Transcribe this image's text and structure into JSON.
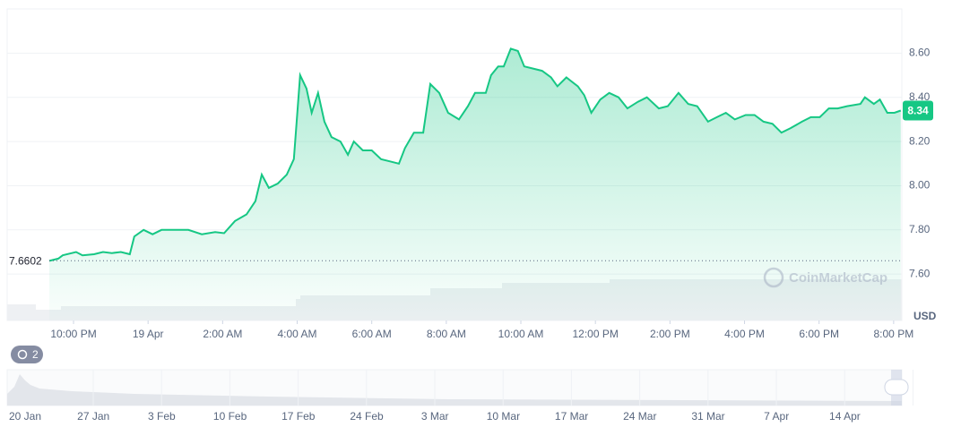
{
  "chart_data": {
    "type": "line",
    "x": [
      21.35,
      21.59,
      21.71,
      22.07,
      22.24,
      22.55,
      22.79,
      23.03,
      23.27,
      23.51,
      23.63,
      23.88,
      24.12,
      24.36,
      24.72,
      25.08,
      25.44,
      25.8,
      26.04,
      26.33,
      26.64,
      26.88,
      27.05,
      27.24,
      27.48,
      27.72,
      27.91,
      28.08,
      28.25,
      28.39,
      28.56,
      28.73,
      28.92,
      29.16,
      29.36,
      29.52,
      29.76,
      30.0,
      30.25,
      30.49,
      30.73,
      30.89,
      31.13,
      31.38,
      31.57,
      31.81,
      32.05,
      32.34,
      32.58,
      32.77,
      33.06,
      33.2,
      33.39,
      33.54,
      33.73,
      33.92,
      34.09,
      34.33,
      34.57,
      34.81,
      34.98,
      35.22,
      35.53,
      35.7,
      35.89,
      36.13,
      36.37,
      36.62,
      36.86,
      37.14,
      37.38,
      37.7,
      37.94,
      38.23,
      38.49,
      38.73,
      39.02,
      39.26,
      39.5,
      39.74,
      40.03,
      40.27,
      40.51,
      40.75,
      40.99,
      41.23,
      41.54,
      41.78,
      42.02,
      42.26,
      42.5,
      42.75,
      43.11,
      43.23,
      43.47,
      43.63,
      43.83,
      44.02,
      44.19
    ],
    "series": [
      {
        "color": "#16c784",
        "values": [
          7.66,
          7.67,
          7.685,
          7.7,
          7.685,
          7.69,
          7.7,
          7.695,
          7.7,
          7.69,
          7.77,
          7.8,
          7.78,
          7.8,
          7.8,
          7.8,
          7.78,
          7.79,
          7.785,
          7.84,
          7.87,
          7.93,
          8.05,
          7.99,
          8.01,
          8.05,
          8.12,
          8.5,
          8.44,
          8.33,
          8.42,
          8.29,
          8.22,
          8.2,
          8.14,
          8.2,
          8.16,
          8.16,
          8.12,
          8.11,
          8.1,
          8.17,
          8.24,
          8.24,
          8.46,
          8.42,
          8.33,
          8.3,
          8.36,
          8.42,
          8.42,
          8.5,
          8.54,
          8.54,
          8.62,
          8.61,
          8.54,
          8.53,
          8.52,
          8.49,
          8.45,
          8.49,
          8.45,
          8.41,
          8.33,
          8.39,
          8.42,
          8.4,
          8.35,
          8.38,
          8.4,
          8.35,
          8.36,
          8.42,
          8.37,
          8.36,
          8.29,
          8.31,
          8.33,
          8.3,
          8.32,
          8.32,
          8.29,
          8.28,
          8.24,
          8.26,
          8.29,
          8.31,
          8.31,
          8.35,
          8.35,
          8.36,
          8.37,
          8.4,
          8.37,
          8.39,
          8.33,
          8.33,
          8.34
        ]
      }
    ],
    "reference": 7.6602,
    "y_label": "USD",
    "watermark": "CoinMarketCap",
    "xlim": [
      20.22,
      44.22
    ],
    "xticks": [
      {
        "value": 22,
        "label": "10:00 PM"
      },
      {
        "value": 24,
        "label": "19 Apr"
      },
      {
        "value": 26,
        "label": "2:00 AM"
      },
      {
        "value": 28,
        "label": "4:00 AM"
      },
      {
        "value": 30,
        "label": "6:00 AM"
      },
      {
        "value": 32,
        "label": "8:00 AM"
      },
      {
        "value": 34,
        "label": "10:00 AM"
      },
      {
        "value": 36,
        "label": "12:00 PM"
      },
      {
        "value": 38,
        "label": "2:00 PM"
      },
      {
        "value": 40,
        "label": "4:00 PM"
      },
      {
        "value": 42,
        "label": "6:00 PM"
      },
      {
        "value": 44,
        "label": "8:00 PM"
      }
    ],
    "ylim": [
      7.39,
      8.8
    ],
    "yticks": [
      {
        "value": 7.6,
        "label": "7.60"
      },
      {
        "value": 7.8,
        "label": "7.80"
      },
      {
        "value": 8,
        "label": "8.00"
      },
      {
        "value": 8.2,
        "label": "8.20"
      },
      {
        "value": 8.4,
        "label": "8.40"
      },
      {
        "value": 8.6,
        "label": "8.60"
      }
    ],
    "grid": true
  },
  "navigator": {
    "badge": "2",
    "labels": [
      "20 Jan",
      "27 Jan",
      "3 Feb",
      "10 Feb",
      "17 Feb",
      "24 Feb",
      "3 Mar",
      "10 Mar",
      "17 Mar",
      "24 Mar",
      "31 Mar",
      "7 Apr",
      "14 Apr"
    ]
  }
}
